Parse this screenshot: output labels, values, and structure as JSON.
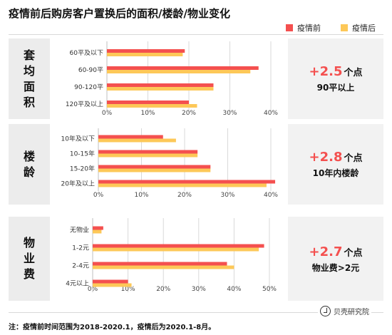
{
  "title": "疫情前后购房客户置换后的面积/楼龄/物业变化",
  "legend": [
    {
      "label": "疫情前",
      "color": "#f4504f"
    },
    {
      "label": "疫情后",
      "color": "#fdc858"
    }
  ],
  "colors": {
    "before": "#f4504f",
    "after": "#fdc858",
    "grid": "#d9d9d9"
  },
  "panels": [
    {
      "label": "套均面积",
      "big": "+2.5",
      "unit": "个点",
      "sub": "90平以上"
    },
    {
      "label": "楼龄",
      "big": "+2.8",
      "unit": "个点",
      "sub": "10年内楼龄"
    },
    {
      "label": "物业费",
      "big": "+2.7",
      "unit": "个点",
      "sub": "物业费>2元"
    }
  ],
  "chart_data": [
    {
      "type": "bar",
      "orientation": "horizontal",
      "categories": [
        "60平及以下",
        "60-90平",
        "90-120平",
        "120平及以上"
      ],
      "series": [
        {
          "name": "疫情前",
          "values": [
            19,
            37,
            26,
            20
          ]
        },
        {
          "name": "疫情后",
          "values": [
            18.5,
            35,
            26,
            22
          ]
        }
      ],
      "xlim": [
        0,
        40
      ],
      "ticks": [
        "0%",
        "10%",
        "20%",
        "30%",
        "40%"
      ],
      "grid": true
    },
    {
      "type": "bar",
      "orientation": "horizontal",
      "categories": [
        "10年及以下",
        "10-15年",
        "15-20年",
        "20年及以上"
      ],
      "series": [
        {
          "name": "疫情前",
          "values": [
            15,
            23,
            26,
            41
          ]
        },
        {
          "name": "疫情后",
          "values": [
            18,
            23,
            26,
            39
          ]
        }
      ],
      "xlim": [
        0,
        40
      ],
      "ticks": [
        "0%",
        "10%",
        "20%",
        "30%",
        "40%"
      ],
      "grid": true
    },
    {
      "type": "bar",
      "orientation": "horizontal",
      "categories": [
        "无物业",
        "1-2元",
        "2-4元",
        "4元以上"
      ],
      "series": [
        {
          "name": "疫情前",
          "values": [
            3,
            48.5,
            38,
            10
          ]
        },
        {
          "name": "疫情后",
          "values": [
            2.5,
            47,
            40,
            11
          ]
        }
      ],
      "xlim": [
        0,
        50
      ],
      "ticks": [
        "0%",
        "10%",
        "20%",
        "30%",
        "40%",
        "50%"
      ],
      "grid": true
    }
  ],
  "footnote": "注：疫情前时间范围为2018-2020.1，疫情后为2020.1-8月。",
  "logo_text": "贝壳研究院"
}
